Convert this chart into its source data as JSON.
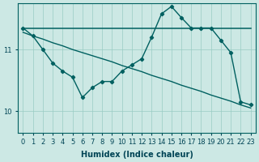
{
  "xlabel": "Humidex (Indice chaleur)",
  "bg_color": "#cce8e4",
  "line_color": "#006060",
  "xlim": [
    -0.5,
    23.5
  ],
  "ylim": [
    9.65,
    11.75
  ],
  "yticks": [
    10,
    11
  ],
  "xticks": [
    0,
    1,
    2,
    3,
    4,
    5,
    6,
    7,
    8,
    9,
    10,
    11,
    12,
    13,
    14,
    15,
    16,
    17,
    18,
    19,
    20,
    21,
    22,
    23
  ],
  "line1_x": [
    0,
    1,
    19,
    20,
    21,
    22,
    23
  ],
  "line1_y": [
    11.35,
    11.35,
    11.35,
    11.35,
    11.35,
    11.35,
    11.35
  ],
  "line2_x": [
    0,
    1,
    2,
    3,
    4,
    5,
    6,
    7,
    8,
    9,
    10,
    11,
    12,
    13,
    14,
    15,
    16,
    17,
    18,
    19,
    20,
    21,
    22,
    23
  ],
  "line2_y": [
    11.28,
    11.22,
    11.17,
    11.11,
    11.06,
    11.0,
    10.95,
    10.9,
    10.85,
    10.8,
    10.74,
    10.69,
    10.64,
    10.58,
    10.53,
    10.48,
    10.42,
    10.37,
    10.32,
    10.26,
    10.21,
    10.16,
    10.1,
    10.05
  ],
  "line3_x": [
    0,
    1,
    2,
    3,
    4,
    5,
    6,
    7,
    8,
    9,
    10,
    11,
    12,
    13,
    14,
    15,
    16,
    17,
    18,
    19,
    20,
    21,
    22,
    23
  ],
  "line3_y": [
    11.35,
    11.22,
    11.0,
    10.78,
    10.65,
    10.55,
    10.22,
    10.38,
    10.48,
    10.48,
    10.65,
    10.75,
    10.85,
    11.2,
    11.58,
    11.7,
    11.52,
    11.35,
    11.35,
    11.35,
    11.15,
    10.95,
    10.15,
    10.1
  ]
}
